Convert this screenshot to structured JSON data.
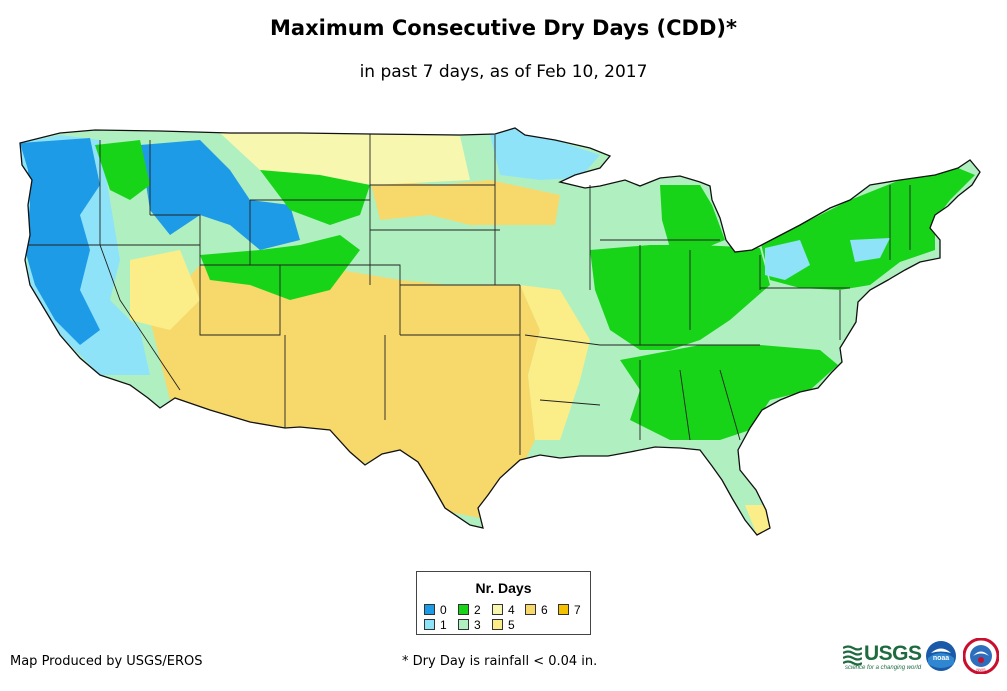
{
  "header": {
    "title": "Maximum Consecutive Dry Days (CDD)*",
    "subtitle": "in past 7 days, as of Feb 10, 2017"
  },
  "legend": {
    "title": "Nr. Days",
    "items": [
      {
        "label": "0",
        "color": "#1e9be6"
      },
      {
        "label": "1",
        "color": "#8fe3f8"
      },
      {
        "label": "2",
        "color": "#18d418"
      },
      {
        "label": "3",
        "color": "#b0f0c0"
      },
      {
        "label": "4",
        "color": "#f7f7b0"
      },
      {
        "label": "5",
        "color": "#fbee88"
      },
      {
        "label": "6",
        "color": "#f7d96b"
      },
      {
        "label": "7",
        "color": "#f5c000"
      }
    ]
  },
  "footer": {
    "credit": "Map Produced by USGS/EROS",
    "note": "* Dry Day is rainfall < 0.04 in."
  },
  "logos": {
    "usgs_name": "USGS",
    "usgs_tagline": "science for a changing world",
    "noaa_name": "noaa",
    "nws_name": "NWS"
  },
  "map": {
    "region": "Contiguous United States",
    "regions": [
      {
        "name": "Pacific Northwest coast",
        "days": 0
      },
      {
        "name": "Northern Rockies",
        "days": 0
      },
      {
        "name": "California & Nevada",
        "days": 1
      },
      {
        "name": "Upper Midwest",
        "days": 1
      },
      {
        "name": "Ohio Valley",
        "days": 2
      },
      {
        "name": "Southeast",
        "days": 2
      },
      {
        "name": "Northeast",
        "days": 2
      },
      {
        "name": "Great Plains",
        "days": 3
      },
      {
        "name": "Northern Plains",
        "days": 4
      },
      {
        "name": "Southwest & Southern Plains",
        "days": 6
      }
    ]
  }
}
